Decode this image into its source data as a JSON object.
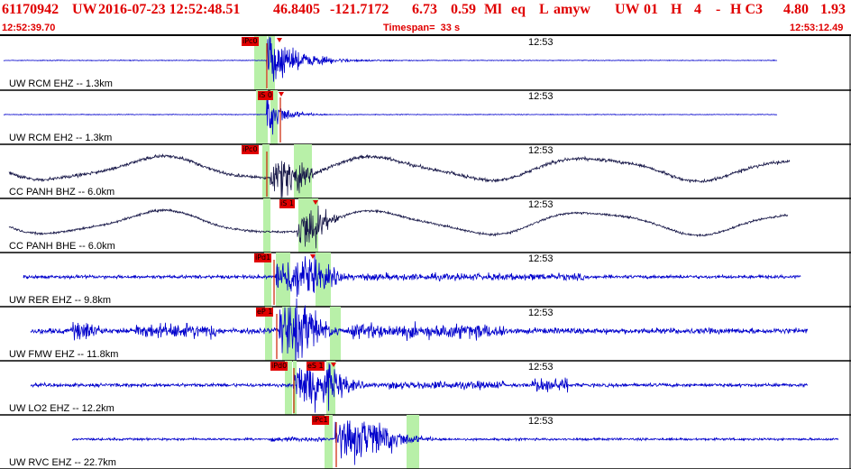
{
  "header": {
    "event_id": "61170942",
    "network": "UW",
    "datetime": "2016-07-23 12:52:48.51",
    "latitude": "46.8405",
    "longitude": "-121.7172",
    "depth": "6.73",
    "magnitude": "0.59",
    "mag_type": "Ml",
    "event_type": "eq",
    "location_flag": "L",
    "analyst": "amyw",
    "source_net": "UW",
    "source_ver": "01",
    "quality_h": "H",
    "quality_n": "4",
    "dash": "-",
    "quality_c": "H C3",
    "value_a": "4.80",
    "value_b": "1.93",
    "start_time": "12:52:39.70",
    "timespan": "Timespan=  33 s",
    "end_time": "12:53:12.49"
  },
  "colors": {
    "header_text": "#e00000",
    "pick_flag": "#e00000",
    "pick_window": "#b8f0a8",
    "trace_blue": "#0000cc",
    "trace_dark": "#1a1a4a",
    "trace_line_thin": "#1a1acc"
  },
  "traces": [
    {
      "label": "UW RCM EHZ -- 1.3km",
      "time_label": "12:53",
      "picks": [
        "iPc0"
      ],
      "extra_picks": [],
      "color": "blue"
    },
    {
      "label": "UW RCM EH2 -- 1.3km",
      "time_label": "12:53",
      "picks": [
        "iS 0"
      ],
      "extra_picks": [],
      "color": "blue"
    },
    {
      "label": "CC PANH BHZ -- 6.0km",
      "time_label": "12:53",
      "picks": [
        "iPc0"
      ],
      "extra_picks": [],
      "color": "dark"
    },
    {
      "label": "CC PANH BHE -- 6.0km",
      "time_label": "12:53",
      "picks": [
        "iS 1"
      ],
      "extra_picks": [],
      "color": "dark"
    },
    {
      "label": "UW RER EHZ -- 9.8km",
      "time_label": "12:53",
      "picks": [
        "iPd1"
      ],
      "extra_picks": [],
      "color": "blue"
    },
    {
      "label": "UW FMW EHZ -- 11.8km",
      "time_label": "12:53",
      "picks": [
        "eP 1"
      ],
      "extra_picks": [],
      "color": "blue"
    },
    {
      "label": "UW LO2 EHZ -- 12.2km",
      "time_label": "12:53",
      "picks": [
        "iPd0"
      ],
      "extra_picks": [
        "eS 1"
      ],
      "color": "blue"
    },
    {
      "label": "UW RVC EHZ -- 22.7km",
      "time_label": "12:53",
      "picks": [
        "iPc1"
      ],
      "extra_picks": [],
      "color": "blue"
    }
  ]
}
